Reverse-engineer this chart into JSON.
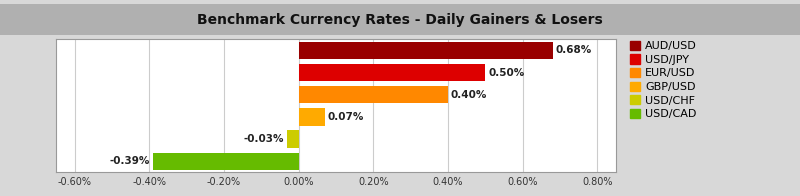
{
  "title": "Benchmark Currency Rates - Daily Gainers & Losers",
  "categories": [
    "AUD/USD",
    "USD/JPY",
    "EUR/USD",
    "GBP/USD",
    "USD/CHF",
    "USD/CAD"
  ],
  "values": [
    0.68,
    0.5,
    0.4,
    0.07,
    -0.03,
    -0.39
  ],
  "colors": [
    "#990000",
    "#DD0000",
    "#FF8800",
    "#FFAA00",
    "#CCCC00",
    "#66BB00"
  ],
  "legend_colors": [
    "#990000",
    "#DD0000",
    "#FF8800",
    "#FFAA00",
    "#CCCC00",
    "#66BB00"
  ],
  "xlim": [
    -0.65,
    0.85
  ],
  "xticks": [
    -0.6,
    -0.4,
    -0.2,
    0.0,
    0.2,
    0.4,
    0.6,
    0.8
  ],
  "title_fontsize": 10,
  "bar_height": 0.78,
  "background_color": "#D8D8D8",
  "plot_bg_color": "#FFFFFF",
  "title_bg_color": "#B0B0B0",
  "grid_color": "#CCCCCC",
  "label_fontsize": 7.5,
  "legend_fontsize": 8,
  "tick_fontsize": 7
}
